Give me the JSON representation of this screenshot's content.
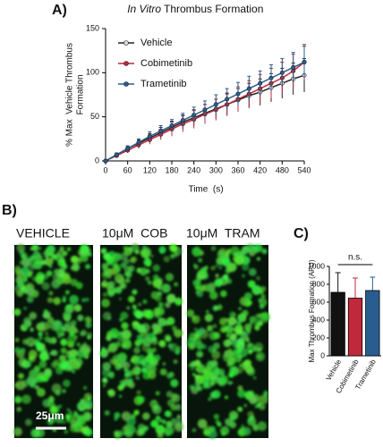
{
  "panel_labels": [
    "A)",
    "B)",
    "C)"
  ],
  "chart_data": [
    {
      "type": "line",
      "title_emphasis": "In Vitro",
      "title": "Thrombus Formation",
      "xlabel": "Time  (s)",
      "ylabel": [
        "% Max  Vehicle Thrombus",
        "Formation"
      ],
      "x": [
        0,
        30,
        60,
        90,
        120,
        150,
        180,
        210,
        240,
        270,
        300,
        330,
        360,
        390,
        420,
        450,
        480,
        510,
        540
      ],
      "series": [
        {
          "name": "Vehicle",
          "color": "#222222",
          "values": [
            0,
            7,
            14,
            20,
            26,
            32,
            38,
            44,
            49,
            54,
            59,
            64,
            69,
            74,
            78,
            83,
            88,
            93,
            97
          ],
          "errors": [
            0,
            2,
            3,
            4,
            5,
            6,
            7,
            8,
            9,
            10,
            11,
            12,
            13,
            14,
            15,
            16,
            17,
            18,
            19
          ]
        },
        {
          "name": "Cobimetinib",
          "color": "#c0283c",
          "values": [
            0,
            6,
            12,
            18,
            24,
            30,
            36,
            42,
            47,
            53,
            58,
            64,
            70,
            76,
            82,
            88,
            94,
            102,
            112
          ],
          "errors": [
            0,
            2,
            3,
            4,
            5,
            6,
            8,
            9,
            10,
            11,
            12,
            13,
            14,
            15,
            16,
            17,
            18,
            19,
            20
          ]
        },
        {
          "name": "Trametinib",
          "color": "#2a5d8f",
          "values": [
            0,
            7,
            14,
            21,
            28,
            34,
            40,
            46,
            52,
            58,
            64,
            70,
            76,
            82,
            88,
            94,
            100,
            106,
            112
          ],
          "errors": [
            0,
            2,
            3,
            4,
            5,
            6,
            7,
            8,
            9,
            10,
            11,
            12,
            13,
            14,
            14,
            15,
            16,
            17,
            18
          ]
        }
      ],
      "xlim": [
        0,
        540
      ],
      "xticks": [
        0,
        60,
        120,
        180,
        240,
        300,
        360,
        420,
        480,
        540
      ],
      "ylim": [
        0,
        150
      ],
      "yticks": [
        0,
        50,
        100,
        150
      ]
    },
    {
      "type": "bar",
      "ylabel": "Max Thrombus Formation (AFU)",
      "annotation": "n.s.",
      "categories": [
        "Vehicle",
        "Cobimetinib",
        "Trametinib"
      ],
      "values": [
        710,
        645,
        730
      ],
      "errors": [
        220,
        225,
        150
      ],
      "colors": [
        "#111111",
        "#c0283c",
        "#2a5d8f"
      ],
      "ylim": [
        0,
        1000
      ],
      "yticks": [
        0,
        200,
        400,
        600,
        800,
        1000
      ]
    }
  ],
  "panel_b": {
    "labels": [
      "VEHICLE",
      "10μM  COB",
      "10μM  TRAM"
    ],
    "scale_bar": "25μm"
  }
}
